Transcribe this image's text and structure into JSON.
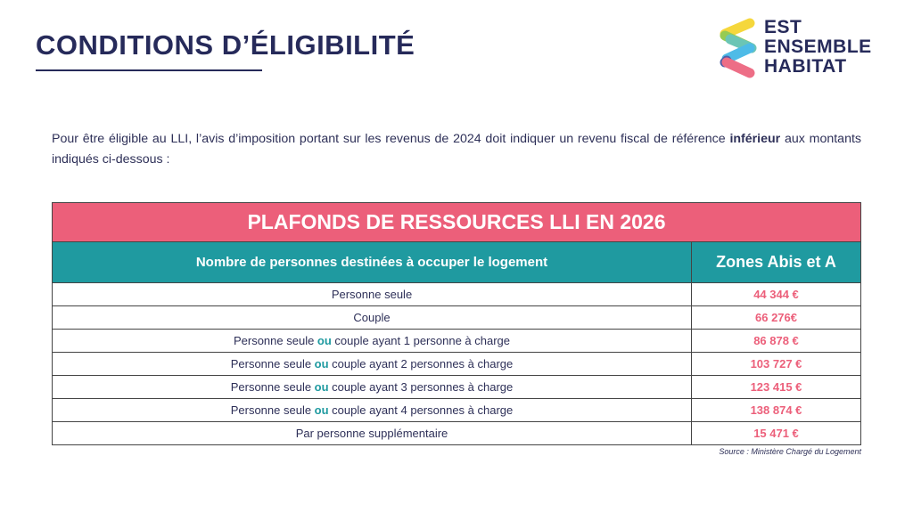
{
  "header": {
    "title": "CONDITIONS D’ÉLIGIBILITÉ"
  },
  "logo": {
    "lines": [
      "EST",
      "ENSEMBLE",
      "HABITAT"
    ],
    "colors": [
      "#f5d327",
      "#8cc63f",
      "#5cbfae",
      "#3bb4e5",
      "#3e4ea0",
      "#ec5f7a"
    ]
  },
  "intro": {
    "before": "Pour être éligible au LLI, l’avis d’imposition portant sur les revenus de 2024 doit indiquer un revenu fiscal de référence ",
    "bold": "inférieur",
    "after": " aux montants indiqués ci-dessous :"
  },
  "table": {
    "title": "PLAFONDS DE RESSOURCES LLI EN 2026",
    "headers": [
      "Nombre de personnes destinées à occuper le logement",
      "Zones Abis et A"
    ],
    "rows": [
      {
        "pre": "Personne seule",
        "ou": "",
        "post": "",
        "value": "44 344 €"
      },
      {
        "pre": "Couple",
        "ou": "",
        "post": "",
        "value": "66 276€"
      },
      {
        "pre": "Personne seule ",
        "ou": "ou",
        "post": " couple ayant 1 personne à charge",
        "value": "86 878 €"
      },
      {
        "pre": "Personne seule ",
        "ou": "ou",
        "post": " couple ayant 2 personnes à charge",
        "value": "103 727 €"
      },
      {
        "pre": "Personne seule ",
        "ou": "ou",
        "post": " couple ayant 3 personnes à charge",
        "value": "123 415 €"
      },
      {
        "pre": "Personne seule ",
        "ou": "ou",
        "post": " couple ayant 4 personnes à charge",
        "value": "138 874 €"
      },
      {
        "pre": "Par personne supplémentaire",
        "ou": "",
        "post": "",
        "value": "15 471 €"
      }
    ]
  },
  "source": "Source : Ministère Chargé du Logement",
  "colors": {
    "pink": "#ec5f7a",
    "teal": "#1f9aa0",
    "navy": "#262a5a"
  }
}
